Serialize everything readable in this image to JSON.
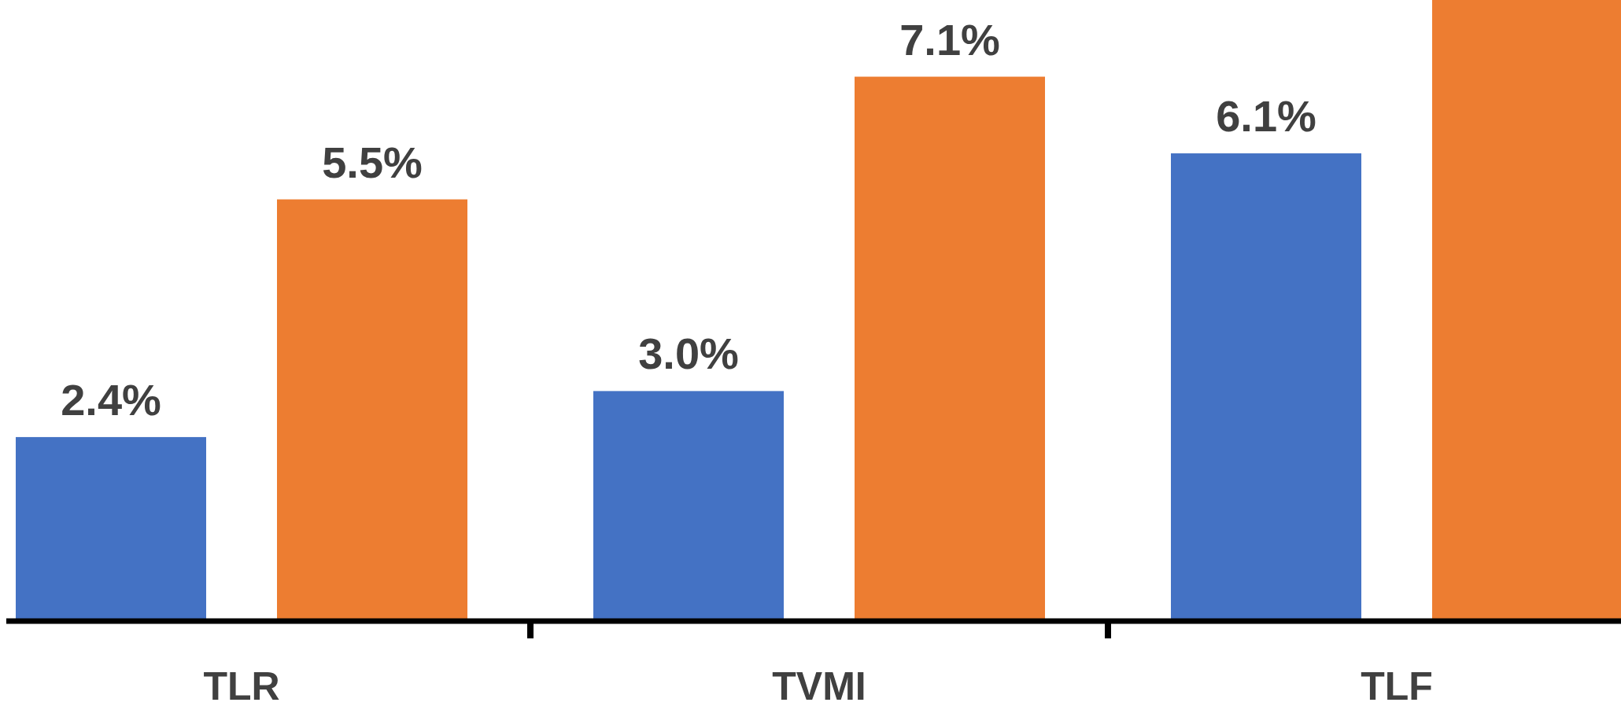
{
  "chart_data": {
    "type": "bar",
    "categories": [
      "TLR",
      "TVMI",
      "TLF"
    ],
    "ylim": [
      0,
      8.1
    ],
    "series": [
      {
        "color": "#4472c4",
        "values": [
          2.4,
          3.0,
          6.1
        ],
        "value_labels": [
          "2.4%",
          "3.0%",
          "6.1%"
        ]
      },
      {
        "color": "#ed7d31",
        "values": [
          5.5,
          7.1,
          8.1
        ],
        "value_labels": [
          "5.5%",
          "7.1%",
          null
        ]
      }
    ]
  }
}
